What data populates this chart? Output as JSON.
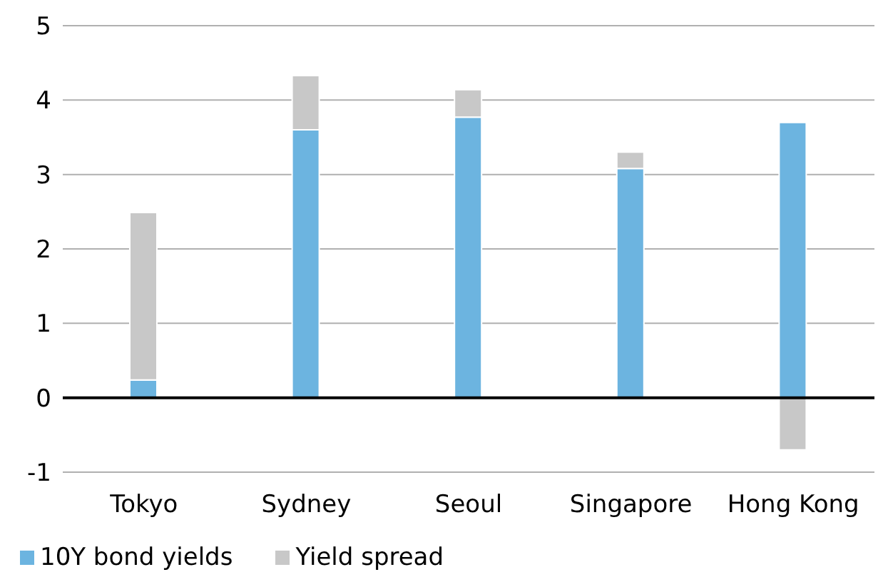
{
  "chart_data": {
    "type": "bar",
    "stacked": true,
    "categories": [
      "Tokyo",
      "Sydney",
      "Seoul",
      "Singapore",
      "Hong Kong"
    ],
    "series": [
      {
        "name": "10Y bond yields",
        "color": "#6cb4e0",
        "values": [
          0.24,
          3.6,
          3.77,
          3.08,
          3.7
        ]
      },
      {
        "name": "Yield spread",
        "color": "#c8c8c8",
        "values": [
          2.25,
          0.73,
          0.37,
          0.22,
          -0.7
        ]
      }
    ],
    "ylim": [
      -1,
      5
    ],
    "yticks": [
      -1,
      0,
      1,
      2,
      3,
      4,
      5
    ],
    "grid": "y",
    "legend": "bottom left",
    "ref_lines": [
      {
        "axis": "y",
        "value": 0,
        "color": "#000000"
      }
    ]
  }
}
